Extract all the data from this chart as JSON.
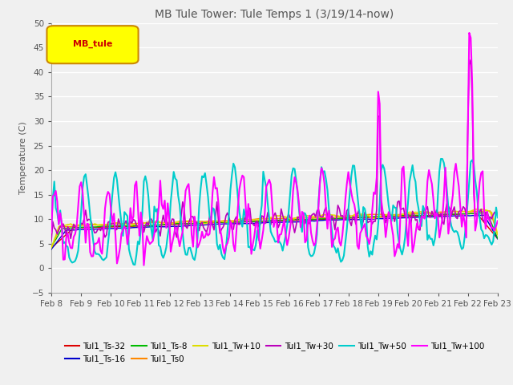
{
  "title": "MB Tule Tower: Tule Temps 1 (3/19/14-now)",
  "ylabel": "Temperature (C)",
  "xlim": [
    0,
    15
  ],
  "ylim": [
    -5,
    50
  ],
  "yticks": [
    -5,
    0,
    5,
    10,
    15,
    20,
    25,
    30,
    35,
    40,
    45,
    50
  ],
  "x_tick_labels": [
    "Feb 8",
    "Feb 9",
    "Feb 10",
    "Feb 11",
    "Feb 12",
    "Feb 13",
    "Feb 14",
    "Feb 15",
    "Feb 16",
    "Feb 17",
    "Feb 18",
    "Feb 19",
    "Feb 20",
    "Feb 21",
    "Feb 22",
    "Feb 23"
  ],
  "legend_box_label": "MB_tule",
  "legend_box_facecolor": "#ffff00",
  "legend_box_edgecolor": "#cc8800",
  "legend_box_textcolor": "#cc0000",
  "series": [
    {
      "label": "Tul1_Ts-32",
      "color": "#dd0000",
      "lw": 1.0
    },
    {
      "label": "Tul1_Ts-16",
      "color": "#0000cc",
      "lw": 1.0
    },
    {
      "label": "Tul1_Ts-8",
      "color": "#00bb00",
      "lw": 1.0
    },
    {
      "label": "Tul1_Ts0",
      "color": "#ff8800",
      "lw": 1.0
    },
    {
      "label": "Tul1_Tw+10",
      "color": "#dddd00",
      "lw": 1.2
    },
    {
      "label": "Tul1_Tw+30",
      "color": "#bb00bb",
      "lw": 1.2
    },
    {
      "label": "Tul1_Tw+50",
      "color": "#00cccc",
      "lw": 1.5
    },
    {
      "label": "Tul1_Tw+100",
      "color": "#ff00ff",
      "lw": 1.5
    }
  ],
  "bg_color": "#f0f0f0",
  "grid_color": "#ffffff",
  "title_color": "#555555",
  "label_color": "#555555",
  "tick_color": "#555555",
  "title_fontsize": 10,
  "label_fontsize": 8,
  "tick_fontsize": 7.5,
  "legend_fontsize": 7.5
}
